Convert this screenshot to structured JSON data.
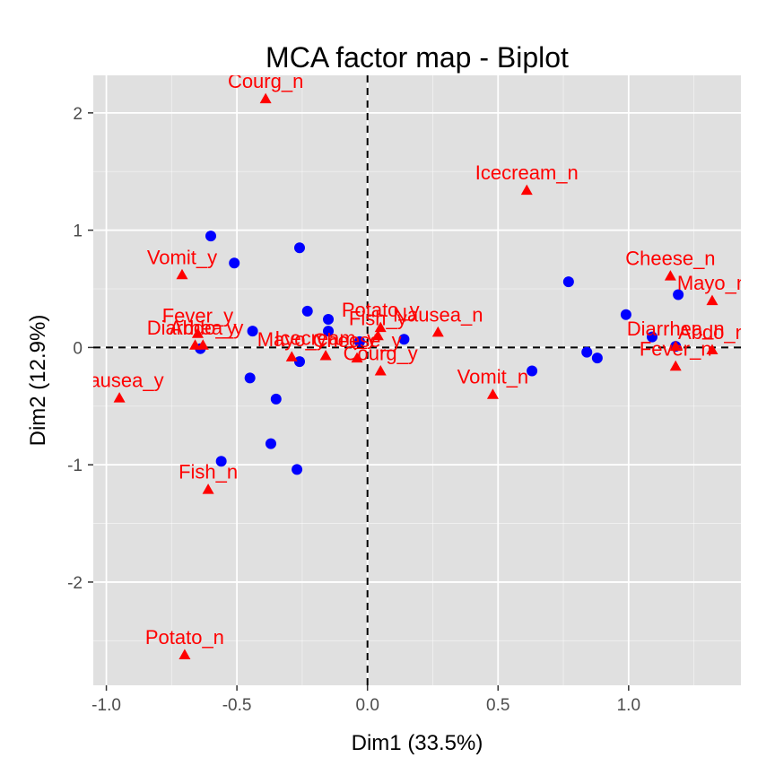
{
  "chart_data": {
    "type": "scatter",
    "title": "MCA factor map - Biplot",
    "xlabel": "Dim1 (33.5%)",
    "ylabel": "Dim2 (12.9%)",
    "xlim": [
      -1.05,
      1.43
    ],
    "ylim": [
      -2.88,
      2.32
    ],
    "x_ticks": [
      -1.0,
      -0.5,
      0.0,
      0.5,
      1.0
    ],
    "x_tick_labels": [
      "-1.0",
      "-0.5",
      "0.0",
      "0.5",
      "1.0"
    ],
    "y_ticks": [
      -2,
      -1,
      0,
      1,
      2
    ],
    "y_tick_labels": [
      "-2",
      "-1",
      "0",
      "1",
      "2"
    ],
    "grid": true,
    "reference_lines": [
      0,
      0
    ],
    "colors": {
      "panel": "#e0e0e0",
      "grid": "#ffffff",
      "individuals": "#0000ff",
      "variables": "#ff0000",
      "reference": "#000000"
    },
    "series": [
      {
        "marker": "circle",
        "color": "#0000ff",
        "points": [
          {
            "x": -0.6,
            "y": 0.95
          },
          {
            "x": -0.51,
            "y": 0.72
          },
          {
            "x": -0.26,
            "y": 0.85
          },
          {
            "x": -0.23,
            "y": 0.31
          },
          {
            "x": -0.15,
            "y": 0.24
          },
          {
            "x": -0.15,
            "y": 0.14
          },
          {
            "x": -0.44,
            "y": 0.14
          },
          {
            "x": -0.64,
            "y": -0.01
          },
          {
            "x": -0.26,
            "y": -0.12
          },
          {
            "x": -0.03,
            "y": 0.05
          },
          {
            "x": 0.14,
            "y": 0.07
          },
          {
            "x": -0.45,
            "y": -0.26
          },
          {
            "x": -0.35,
            "y": -0.44
          },
          {
            "x": -0.37,
            "y": -0.82
          },
          {
            "x": -0.56,
            "y": -0.97
          },
          {
            "x": -0.27,
            "y": -1.04
          },
          {
            "x": 0.63,
            "y": -0.2
          },
          {
            "x": 0.77,
            "y": 0.56
          },
          {
            "x": 0.84,
            "y": -0.04
          },
          {
            "x": 0.88,
            "y": -0.09
          },
          {
            "x": 0.99,
            "y": 0.28
          },
          {
            "x": 1.09,
            "y": 0.09
          },
          {
            "x": 1.19,
            "y": 0.45
          },
          {
            "x": 1.18,
            "y": 0.01
          }
        ]
      },
      {
        "marker": "triangle",
        "color": "#ff0000",
        "points": [
          {
            "label": "Courg_n",
            "x": -0.39,
            "y": 2.12
          },
          {
            "label": "Icecream_n",
            "x": 0.61,
            "y": 1.34
          },
          {
            "label": "Vomit_y",
            "x": -0.71,
            "y": 0.62
          },
          {
            "label": "Cheese_n",
            "x": 1.16,
            "y": 0.61
          },
          {
            "label": "Mayo_n",
            "x": 1.32,
            "y": 0.4
          },
          {
            "label": "Fever_y",
            "x": -0.65,
            "y": 0.12
          },
          {
            "label": "Diarrhea_y",
            "x": -0.66,
            "y": 0.02
          },
          {
            "label": "Abdo_y",
            "x": -0.63,
            "y": 0.02
          },
          {
            "label": "Potato_y",
            "x": 0.05,
            "y": 0.17
          },
          {
            "label": "Fish_y",
            "x": 0.04,
            "y": 0.1
          },
          {
            "label": "Nausea_n",
            "x": 0.27,
            "y": 0.13
          },
          {
            "label": "Mayo_y",
            "x": -0.29,
            "y": -0.08
          },
          {
            "label": "Icecream_y",
            "x": -0.16,
            "y": -0.07
          },
          {
            "label": "Cheese_y",
            "x": -0.04,
            "y": -0.09
          },
          {
            "label": "Courg_y",
            "x": 0.05,
            "y": -0.2
          },
          {
            "label": "Diarrhea_n",
            "x": 1.18,
            "y": 0.01
          },
          {
            "label": "Abdo_n",
            "x": 1.32,
            "y": -0.02
          },
          {
            "label": "Fever_n",
            "x": 1.18,
            "y": -0.16
          },
          {
            "label": "Vomit_n",
            "x": 0.48,
            "y": -0.4
          },
          {
            "label": "Nausea_y",
            "x": -0.95,
            "y": -0.43
          },
          {
            "label": "Fish_n",
            "x": -0.61,
            "y": -1.21
          },
          {
            "label": "Potato_n",
            "x": -0.7,
            "y": -2.62
          }
        ]
      }
    ]
  }
}
